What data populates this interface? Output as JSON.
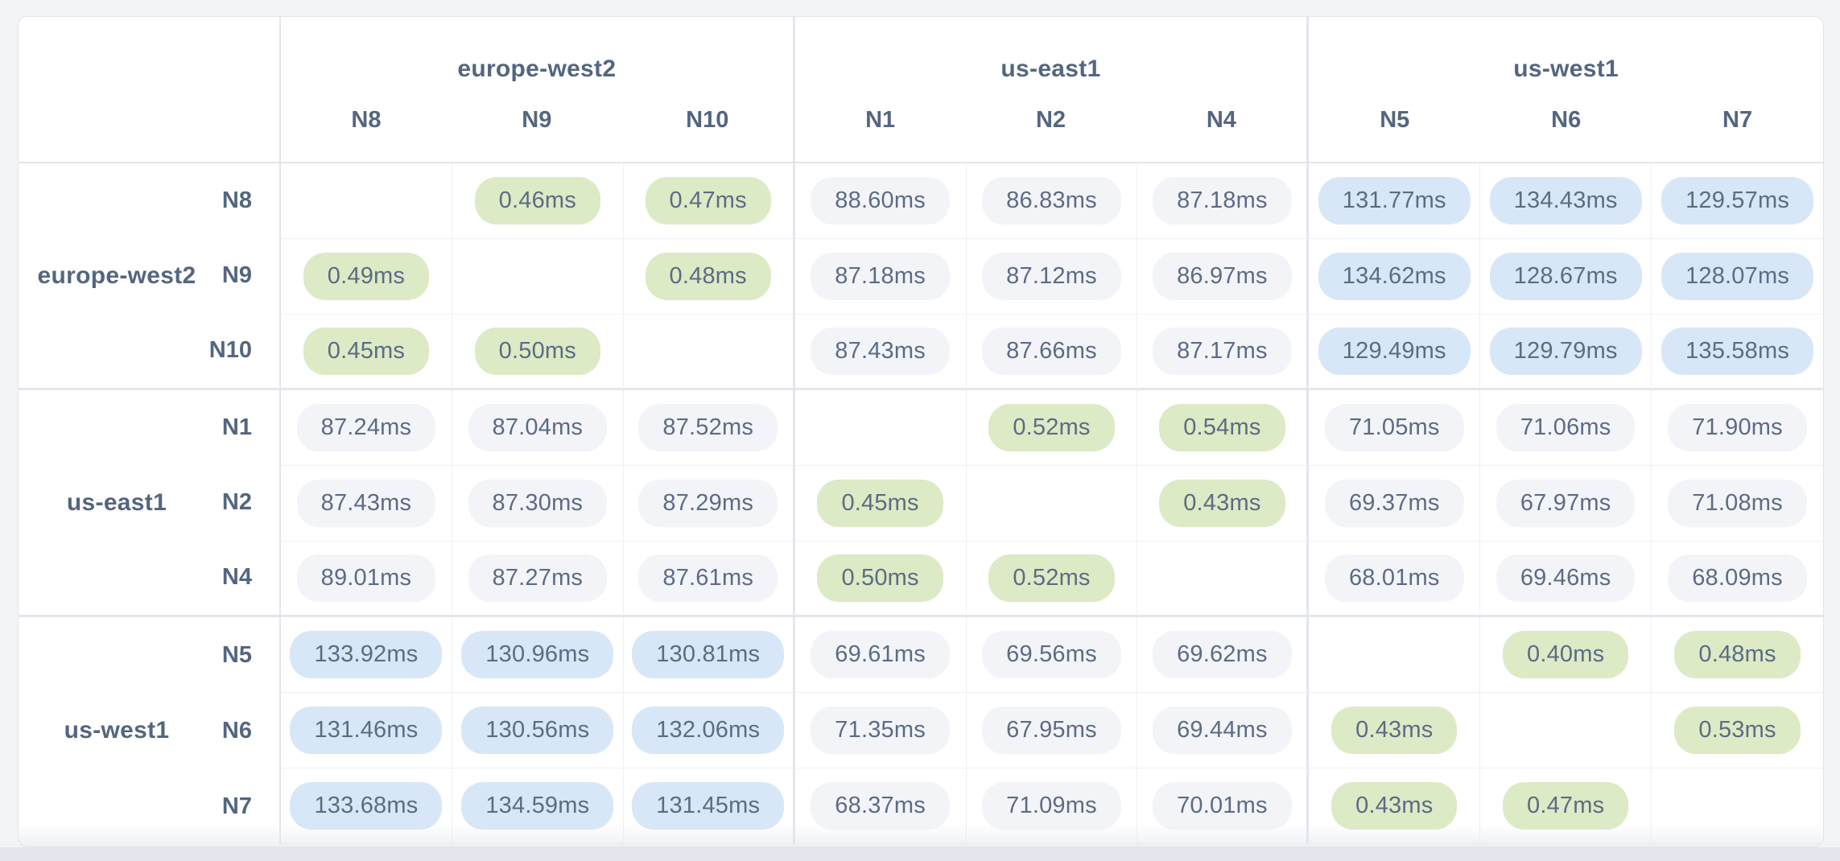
{
  "matrix": {
    "unit": "ms",
    "column_groups": [
      {
        "region": "europe-west2",
        "nodes": [
          "N8",
          "N9",
          "N10"
        ]
      },
      {
        "region": "us-east1",
        "nodes": [
          "N1",
          "N2",
          "N4"
        ]
      },
      {
        "region": "us-west1",
        "nodes": [
          "N5",
          "N6",
          "N7"
        ]
      }
    ],
    "row_groups": [
      {
        "region": "europe-west2",
        "nodes": [
          "N8",
          "N9",
          "N10"
        ]
      },
      {
        "region": "us-east1",
        "nodes": [
          "N1",
          "N2",
          "N4"
        ]
      },
      {
        "region": "us-west1",
        "nodes": [
          "N5",
          "N6",
          "N7"
        ]
      }
    ],
    "rows": [
      {
        "node": "N8",
        "values": [
          null,
          "0.46ms",
          "0.47ms",
          "88.60ms",
          "86.83ms",
          "87.18ms",
          "131.77ms",
          "134.43ms",
          "129.57ms"
        ],
        "tones": [
          "-",
          "g",
          "g",
          "n",
          "n",
          "n",
          "b",
          "b",
          "b"
        ]
      },
      {
        "node": "N9",
        "values": [
          "0.49ms",
          null,
          "0.48ms",
          "87.18ms",
          "87.12ms",
          "86.97ms",
          "134.62ms",
          "128.67ms",
          "128.07ms"
        ],
        "tones": [
          "g",
          "-",
          "g",
          "n",
          "n",
          "n",
          "b",
          "b",
          "b"
        ]
      },
      {
        "node": "N10",
        "values": [
          "0.45ms",
          "0.50ms",
          null,
          "87.43ms",
          "87.66ms",
          "87.17ms",
          "129.49ms",
          "129.79ms",
          "135.58ms"
        ],
        "tones": [
          "g",
          "g",
          "-",
          "n",
          "n",
          "n",
          "b",
          "b",
          "b"
        ]
      },
      {
        "node": "N1",
        "values": [
          "87.24ms",
          "87.04ms",
          "87.52ms",
          null,
          "0.52ms",
          "0.54ms",
          "71.05ms",
          "71.06ms",
          "71.90ms"
        ],
        "tones": [
          "n",
          "n",
          "n",
          "-",
          "g",
          "g",
          "n",
          "n",
          "n"
        ]
      },
      {
        "node": "N2",
        "values": [
          "87.43ms",
          "87.30ms",
          "87.29ms",
          "0.45ms",
          null,
          "0.43ms",
          "69.37ms",
          "67.97ms",
          "71.08ms"
        ],
        "tones": [
          "n",
          "n",
          "n",
          "g",
          "-",
          "g",
          "n",
          "n",
          "n"
        ]
      },
      {
        "node": "N4",
        "values": [
          "89.01ms",
          "87.27ms",
          "87.61ms",
          "0.50ms",
          "0.52ms",
          null,
          "68.01ms",
          "69.46ms",
          "68.09ms"
        ],
        "tones": [
          "n",
          "n",
          "n",
          "g",
          "g",
          "-",
          "n",
          "n",
          "n"
        ]
      },
      {
        "node": "N5",
        "values": [
          "133.92ms",
          "130.96ms",
          "130.81ms",
          "69.61ms",
          "69.56ms",
          "69.62ms",
          null,
          "0.40ms",
          "0.48ms"
        ],
        "tones": [
          "b",
          "b",
          "b",
          "n",
          "n",
          "n",
          "-",
          "g",
          "g"
        ]
      },
      {
        "node": "N6",
        "values": [
          "131.46ms",
          "130.56ms",
          "132.06ms",
          "71.35ms",
          "67.95ms",
          "69.44ms",
          "0.43ms",
          null,
          "0.53ms"
        ],
        "tones": [
          "b",
          "b",
          "b",
          "n",
          "n",
          "n",
          "g",
          "-",
          "g"
        ]
      },
      {
        "node": "N7",
        "values": [
          "133.68ms",
          "134.59ms",
          "131.45ms",
          "68.37ms",
          "71.09ms",
          "70.01ms",
          "0.43ms",
          "0.47ms",
          null
        ],
        "tones": [
          "b",
          "b",
          "b",
          "n",
          "n",
          "n",
          "g",
          "g",
          "-"
        ]
      }
    ]
  },
  "colors": {
    "low_latency_green": "#DCEAC6",
    "mid_latency_neutral": "#F2F4F8",
    "high_latency_blue": "#D7E7F7",
    "header_text": "#54667F",
    "value_text": "#5D6B84",
    "page_background": "#F3F4F8",
    "bottom_strip": "#E4E6ED"
  }
}
